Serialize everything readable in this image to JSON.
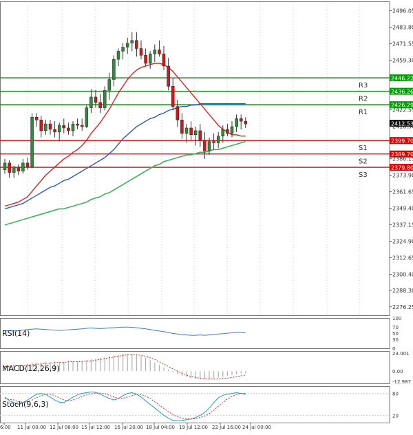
{
  "chart_data": {
    "type": "candlestick",
    "instrument_panel": {
      "price_labels": [
        "2496.05",
        "2483.80",
        "2471.55",
        "2459.30",
        "2422.55",
        "2410.30",
        "2386.15",
        "2373.90",
        "2361.65",
        "2349.40",
        "2337.15",
        "2324.90",
        "2312.65",
        "2300.40",
        "2288.30",
        "2276.25"
      ],
      "price_values": [
        2496.05,
        2483.8,
        2471.55,
        2459.3,
        2422.55,
        2410.3,
        2386.15,
        2373.9,
        2361.65,
        2349.4,
        2337.15,
        2324.9,
        2312.65,
        2300.4,
        2288.3,
        2276.25
      ],
      "current_price": "2412.53",
      "current_price_value": 2412.53,
      "levels": [
        {
          "name": "R3",
          "value": 2446.22,
          "label": "2446.22",
          "color": "#00a000"
        },
        {
          "name": "R2",
          "value": 2436.26,
          "label": "2436.26",
          "color": "#00a000"
        },
        {
          "name": "R1",
          "value": 2426.29,
          "label": "2426.29",
          "color": "#00a000"
        },
        {
          "name": "S1",
          "value": 2399.7,
          "label": "2399.70",
          "color": "#e00000"
        },
        {
          "name": "S2",
          "value": 2389.7,
          "label": "2389.70",
          "color": "#e00000"
        },
        {
          "name": "S3",
          "value": 2379.8,
          "label": "2379.80",
          "color": "#e00000"
        }
      ],
      "ylim": [
        2270,
        2503
      ],
      "candles": [
        [
          2378,
          2386,
          2375,
          2383
        ],
        [
          2383,
          2385,
          2372,
          2376
        ],
        [
          2376,
          2381,
          2372,
          2380
        ],
        [
          2380,
          2382,
          2374,
          2377
        ],
        [
          2377,
          2386,
          2375,
          2383
        ],
        [
          2383,
          2387,
          2378,
          2380
        ],
        [
          2380,
          2420,
          2379,
          2417
        ],
        [
          2417,
          2420,
          2410,
          2415
        ],
        [
          2415,
          2418,
          2402,
          2407
        ],
        [
          2407,
          2415,
          2404,
          2412
        ],
        [
          2412,
          2415,
          2404,
          2408
        ],
        [
          2408,
          2414,
          2402,
          2406
        ],
        [
          2406,
          2413,
          2399,
          2411
        ],
        [
          2411,
          2416,
          2405,
          2409
        ],
        [
          2409,
          2413,
          2404,
          2407
        ],
        [
          2407,
          2414,
          2403,
          2412
        ],
        [
          2412,
          2416,
          2408,
          2411
        ],
        [
          2411,
          2416,
          2407,
          2410
        ],
        [
          2410,
          2426,
          2409,
          2424
        ],
        [
          2424,
          2438,
          2420,
          2432
        ],
        [
          2432,
          2437,
          2424,
          2428
        ],
        [
          2428,
          2434,
          2420,
          2424
        ],
        [
          2424,
          2440,
          2422,
          2437
        ],
        [
          2437,
          2450,
          2430,
          2445
        ],
        [
          2445,
          2463,
          2440,
          2460
        ],
        [
          2460,
          2468,
          2455,
          2466
        ],
        [
          2466,
          2472,
          2460,
          2469
        ],
        [
          2469,
          2476,
          2464,
          2472
        ],
        [
          2472,
          2480,
          2466,
          2474
        ],
        [
          2474,
          2480,
          2462,
          2468
        ],
        [
          2468,
          2474,
          2460,
          2463
        ],
        [
          2463,
          2468,
          2455,
          2457
        ],
        [
          2457,
          2466,
          2453,
          2464
        ],
        [
          2464,
          2471,
          2458,
          2467
        ],
        [
          2467,
          2474,
          2462,
          2464
        ],
        [
          2464,
          2470,
          2452,
          2455
        ],
        [
          2455,
          2461,
          2437,
          2440
        ],
        [
          2440,
          2446,
          2422,
          2425
        ],
        [
          2425,
          2430,
          2410,
          2415
        ],
        [
          2415,
          2420,
          2401,
          2405
        ],
        [
          2405,
          2412,
          2398,
          2409
        ],
        [
          2409,
          2414,
          2400,
          2404
        ],
        [
          2404,
          2410,
          2396,
          2407
        ],
        [
          2407,
          2412,
          2395,
          2400
        ],
        [
          2400,
          2406,
          2386,
          2392
        ],
        [
          2392,
          2402,
          2389,
          2399
        ],
        [
          2399,
          2405,
          2393,
          2398
        ],
        [
          2398,
          2406,
          2394,
          2403
        ],
        [
          2403,
          2411,
          2398,
          2408
        ],
        [
          2408,
          2412,
          2403,
          2405
        ],
        [
          2405,
          2414,
          2402,
          2410
        ],
        [
          2410,
          2419,
          2406,
          2416
        ],
        [
          2416,
          2419,
          2408,
          2414
        ],
        [
          2414,
          2417,
          2409,
          2412
        ]
      ],
      "ema_red": [
        2351,
        2352,
        2353,
        2354,
        2356,
        2358,
        2362,
        2366,
        2370,
        2374,
        2377,
        2380,
        2383,
        2386,
        2388,
        2391,
        2393,
        2396,
        2400,
        2405,
        2409,
        2413,
        2418,
        2423,
        2429,
        2435,
        2440,
        2445,
        2449,
        2452,
        2454,
        2455,
        2456,
        2457,
        2457,
        2456,
        2454,
        2451,
        2447,
        2443,
        2439,
        2435,
        2431,
        2427,
        2423,
        2419,
        2415,
        2411,
        2408,
        2406,
        2404,
        2404,
        2403,
        2403
      ],
      "ema_blue": [
        2349,
        2350,
        2351,
        2352,
        2353,
        2355,
        2357,
        2359,
        2361,
        2363,
        2365,
        2366,
        2368,
        2370,
        2371,
        2373,
        2375,
        2377,
        2379,
        2381,
        2383,
        2385,
        2387,
        2390,
        2393,
        2397,
        2401,
        2404,
        2407,
        2410,
        2412,
        2414,
        2416,
        2417,
        2419,
        2420,
        2422,
        2423,
        2424,
        2425,
        2425,
        2426,
        2426,
        2427,
        2427,
        2427,
        2427,
        2427,
        2427,
        2427,
        2427,
        2427,
        2427,
        2427
      ],
      "sma_green": [
        2337,
        2338,
        2339,
        2340,
        2341,
        2342,
        2343,
        2344,
        2345,
        2346,
        2347,
        2348,
        2349,
        2349,
        2350,
        2351,
        2352,
        2353,
        2354,
        2356,
        2357,
        2358,
        2360,
        2361,
        2363,
        2365,
        2367,
        2369,
        2371,
        2373,
        2375,
        2377,
        2379,
        2381,
        2382,
        2384,
        2385,
        2386,
        2387,
        2388,
        2389,
        2389,
        2390,
        2391,
        2391,
        2392,
        2393,
        2393,
        2394,
        2395,
        2396,
        2397,
        2398,
        2399
      ],
      "x_ticks": [
        "6:00",
        "11 Jul 00:00",
        "12 Jul 08:00",
        "15 Jul 12:00",
        "16 Jul 20:00",
        "18 Jul 04:00",
        "19 Jul 12:00",
        "22 Jul 16:00",
        "24 Jul 00:00"
      ]
    },
    "rsi_panel": {
      "title": "RSI(14)",
      "scale_labels": [
        "100",
        "70",
        "50",
        "30",
        "0"
      ],
      "values": [
        58,
        58,
        57,
        58,
        60,
        62,
        63,
        64,
        63,
        62,
        61,
        60,
        59,
        60,
        61,
        62,
        63,
        64,
        66,
        67,
        66,
        65,
        66,
        67,
        68,
        69,
        70,
        70,
        69,
        68,
        66,
        64,
        62,
        59,
        57,
        55,
        52,
        49,
        47,
        45,
        44,
        43,
        43,
        44,
        43,
        44,
        46,
        47,
        48,
        50,
        51,
        53,
        52,
        51
      ]
    },
    "macd_panel": {
      "title": "MACD(12,26,9)",
      "scale_labels": [
        "23.001",
        "0.00",
        "-12.987"
      ],
      "histogram": [
        6,
        7,
        7,
        8,
        8,
        9,
        10,
        11,
        11,
        12,
        12,
        12,
        12,
        12,
        13,
        13,
        13,
        13,
        14,
        15,
        16,
        17,
        18,
        19,
        20,
        21,
        22,
        22,
        22,
        21,
        19,
        17,
        14,
        11,
        8,
        5,
        2,
        -1,
        -4,
        -6,
        -8,
        -9,
        -10,
        -10,
        -10,
        -10,
        -9,
        -8,
        -7,
        -6,
        -5,
        -4,
        -3,
        -3
      ],
      "signal": [
        6,
        6,
        7,
        7,
        7,
        8,
        8,
        9,
        9,
        10,
        10,
        11,
        11,
        11,
        12,
        12,
        12,
        12,
        13,
        13,
        14,
        15,
        16,
        17,
        18,
        19,
        20,
        21,
        21,
        21,
        20,
        19,
        17,
        15,
        12,
        9,
        6,
        3,
        0,
        -3,
        -5,
        -7,
        -8,
        -9,
        -10,
        -10,
        -10,
        -10,
        -9,
        -9,
        -8,
        -7,
        -6,
        -5
      ]
    },
    "stoch_panel": {
      "title": "Stoch(9,6,3)",
      "scale_labels": [
        "80",
        "20"
      ],
      "k": [
        70,
        60,
        55,
        50,
        55,
        62,
        70,
        78,
        80,
        77,
        70,
        62,
        56,
        55,
        62,
        70,
        76,
        80,
        82,
        84,
        83,
        78,
        72,
        66,
        62,
        66,
        74,
        80,
        82,
        78,
        70,
        60,
        50,
        40,
        30,
        20,
        12,
        6,
        5,
        6,
        8,
        10,
        14,
        20,
        28,
        40,
        55,
        68,
        75,
        78,
        80,
        82,
        80,
        78
      ],
      "d": [
        66,
        64,
        62,
        58,
        56,
        58,
        62,
        68,
        74,
        78,
        78,
        74,
        68,
        62,
        60,
        62,
        66,
        72,
        76,
        79,
        81,
        81,
        79,
        75,
        70,
        67,
        67,
        70,
        74,
        77,
        77,
        73,
        66,
        57,
        48,
        39,
        30,
        22,
        16,
        12,
        10,
        10,
        11,
        14,
        18,
        25,
        34,
        45,
        55,
        65,
        72,
        77,
        80,
        80
      ]
    }
  }
}
